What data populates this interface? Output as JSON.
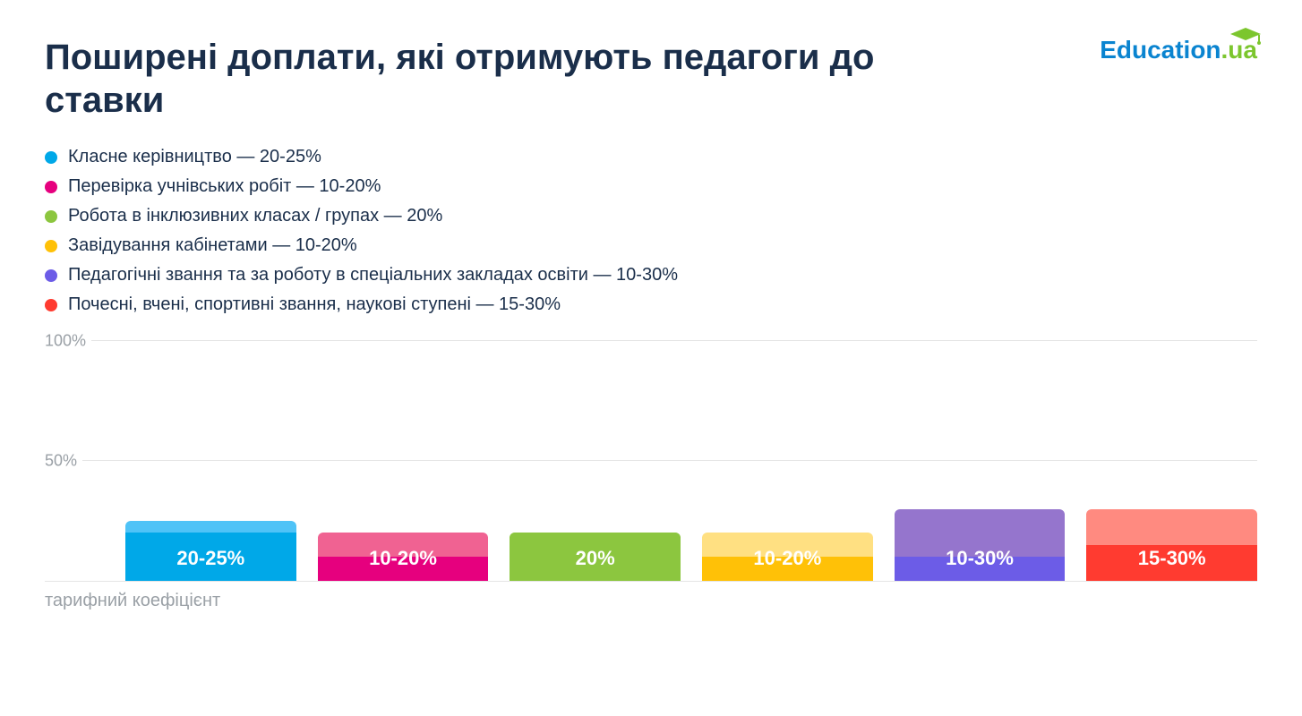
{
  "title": "Поширені доплати, які отримують педагоги до ставки",
  "logo": {
    "edu": "Education",
    "ua": ".ua",
    "cap_color": "#7cc62e"
  },
  "legend": [
    {
      "label": "Класне керівництво — 20-25%",
      "color": "#00a8e8"
    },
    {
      "label": "Перевірка учнівських робіт — 10-20%",
      "color": "#e6007e"
    },
    {
      "label": "Робота в інклюзивних класах / групах — 20%",
      "color": "#8cc63f"
    },
    {
      "label": "Завідування кабінетами — 10-20%",
      "color": "#ffc107"
    },
    {
      "label": "Педагогічні звання та за роботу в спеціальних закладах освіти — 10-30%",
      "color": "#6c5ce7"
    },
    {
      "label": "Почесні, вчені, спортивні звання, наукові ступені — 15-30%",
      "color": "#ff3b30"
    }
  ],
  "chart": {
    "type": "bar",
    "ylim": [
      0,
      100
    ],
    "yticks": [
      {
        "v": 100,
        "label": "100%"
      },
      {
        "v": 50,
        "label": "50%"
      }
    ],
    "grid_color": "#e5e5e5",
    "xlabel": "тарифний коефіцієнт",
    "label_color": "#9aa0a6",
    "label_fontsize": 20,
    "bar_label_color": "#ffffff",
    "bar_label_fontsize": 22,
    "bar_radius": 6,
    "bars": [
      {
        "min": 20,
        "max": 25,
        "label": "20-25%",
        "outer_color": "#4fc3f7",
        "inner_color": "#00a8e8"
      },
      {
        "min": 10,
        "max": 20,
        "label": "10-20%",
        "outer_color": "#f06292",
        "inner_color": "#e6007e"
      },
      {
        "min": 20,
        "max": 20,
        "label": "20%",
        "outer_color": "#aed581",
        "inner_color": "#8cc63f"
      },
      {
        "min": 10,
        "max": 20,
        "label": "10-20%",
        "outer_color": "#ffe082",
        "inner_color": "#ffc107"
      },
      {
        "min": 10,
        "max": 30,
        "label": "10-30%",
        "outer_color": "#9575cd",
        "inner_color": "#6c5ce7"
      },
      {
        "min": 15,
        "max": 30,
        "label": "15-30%",
        "outer_color": "#ff8a80",
        "inner_color": "#ff3b30"
      }
    ]
  }
}
